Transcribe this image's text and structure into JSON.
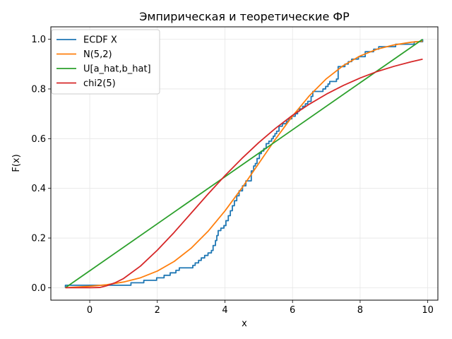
{
  "chart_data": {
    "type": "line",
    "title": "Эмпирическая и теоретические ФР",
    "xlabel": "x",
    "ylabel": "F(x)",
    "xlim": [
      -1.15,
      10.3
    ],
    "ylim": [
      -0.05,
      1.05
    ],
    "x_ticks": [
      0,
      2,
      4,
      6,
      8,
      10
    ],
    "x_tick_labels": [
      "0",
      "2",
      "4",
      "6",
      "8",
      "10"
    ],
    "y_ticks": [
      0.0,
      0.2,
      0.4,
      0.6,
      0.8,
      1.0
    ],
    "y_tick_labels": [
      "0.0",
      "0.2",
      "0.4",
      "0.6",
      "0.8",
      "1.0"
    ],
    "grid": true,
    "legend_position": "top-left",
    "series": [
      {
        "name": "ECDF X",
        "kind": "step",
        "color": "#1f77b4",
        "x": [
          -0.72,
          1.22,
          1.6,
          1.98,
          2.2,
          2.38,
          2.55,
          2.65,
          3.05,
          3.12,
          3.22,
          3.3,
          3.4,
          3.5,
          3.6,
          3.65,
          3.72,
          3.76,
          3.8,
          3.88,
          3.97,
          4.03,
          4.1,
          4.16,
          4.22,
          4.28,
          4.35,
          4.42,
          4.52,
          4.62,
          4.78,
          4.85,
          4.9,
          4.95,
          5.02,
          5.08,
          5.15,
          5.22,
          5.3,
          5.38,
          5.43,
          5.48,
          5.53,
          5.6,
          5.7,
          5.82,
          5.88,
          5.98,
          6.08,
          6.15,
          6.2,
          6.3,
          6.38,
          6.45,
          6.55,
          6.6,
          6.9,
          6.98,
          7.05,
          7.1,
          7.3,
          7.35,
          7.55,
          7.65,
          7.75,
          7.95,
          8.15,
          8.4,
          8.55,
          8.75,
          9.05,
          9.3,
          9.6,
          9.85
        ],
        "y": [
          0.01,
          0.02,
          0.03,
          0.04,
          0.05,
          0.06,
          0.07,
          0.08,
          0.09,
          0.1,
          0.11,
          0.12,
          0.13,
          0.14,
          0.15,
          0.17,
          0.19,
          0.21,
          0.23,
          0.24,
          0.25,
          0.27,
          0.29,
          0.31,
          0.33,
          0.35,
          0.37,
          0.39,
          0.41,
          0.43,
          0.47,
          0.49,
          0.5,
          0.52,
          0.54,
          0.55,
          0.56,
          0.58,
          0.59,
          0.6,
          0.61,
          0.62,
          0.63,
          0.65,
          0.66,
          0.67,
          0.68,
          0.69,
          0.7,
          0.71,
          0.72,
          0.73,
          0.74,
          0.75,
          0.77,
          0.79,
          0.8,
          0.81,
          0.82,
          0.83,
          0.84,
          0.89,
          0.9,
          0.91,
          0.92,
          0.93,
          0.95,
          0.96,
          0.97,
          0.97,
          0.98,
          0.98,
          0.99,
          1.0
        ]
      },
      {
        "name": "N(5,2)",
        "kind": "line",
        "color": "#ff7f0e",
        "x": [
          -0.72,
          0.0,
          0.5,
          1.0,
          1.5,
          2.0,
          2.5,
          3.0,
          3.5,
          4.0,
          4.5,
          5.0,
          5.5,
          6.0,
          6.5,
          7.0,
          7.5,
          8.0,
          8.5,
          9.0,
          9.5,
          9.85
        ],
        "y": [
          0.0,
          0.006,
          0.012,
          0.023,
          0.04,
          0.067,
          0.106,
          0.159,
          0.227,
          0.309,
          0.401,
          0.5,
          0.599,
          0.691,
          0.773,
          0.841,
          0.894,
          0.933,
          0.96,
          0.977,
          0.988,
          0.992
        ]
      },
      {
        "name": "U[a_hat,b_hat]",
        "kind": "line",
        "color": "#2ca02c",
        "x": [
          -0.72,
          9.85
        ],
        "y": [
          0.0,
          1.0
        ]
      },
      {
        "name": "chi2(5)",
        "kind": "line",
        "color": "#d62728",
        "x": [
          -0.72,
          0.0,
          0.3,
          0.5,
          0.75,
          1.0,
          1.5,
          2.0,
          2.5,
          3.0,
          3.5,
          4.0,
          4.5,
          5.0,
          5.5,
          6.0,
          6.5,
          7.0,
          7.5,
          8.0,
          8.5,
          9.0,
          9.5,
          9.85
        ],
        "y": [
          0.0,
          0.0,
          0.001,
          0.008,
          0.02,
          0.037,
          0.087,
          0.151,
          0.223,
          0.3,
          0.377,
          0.451,
          0.52,
          0.584,
          0.642,
          0.694,
          0.739,
          0.779,
          0.814,
          0.844,
          0.87,
          0.891,
          0.909,
          0.92
        ]
      }
    ]
  }
}
